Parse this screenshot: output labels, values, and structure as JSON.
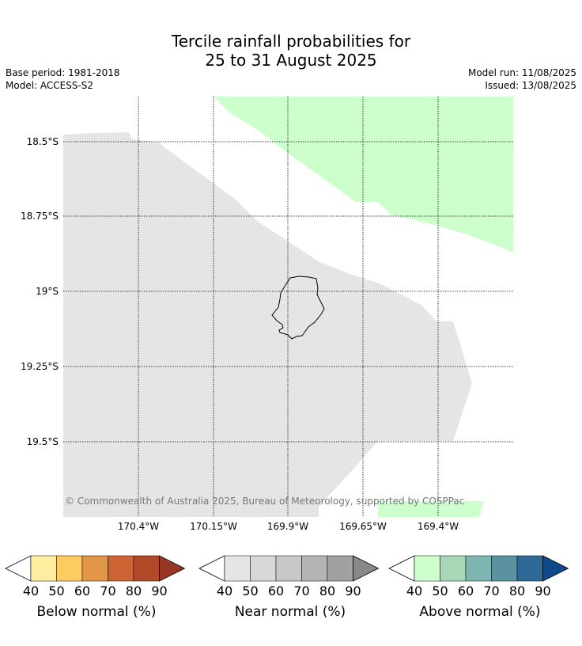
{
  "title": {
    "line1": "Tercile rainfall probabilities for",
    "line2": "25 to 31 August 2025"
  },
  "meta": {
    "base_period": "Base period: 1981-2018",
    "model": "Model: ACCESS-S2",
    "model_run": "Model run: 11/08/2025",
    "issued": "Issued: 13/08/2025"
  },
  "map": {
    "lat_labels": [
      "18.5°S",
      "18.75°S",
      "19°S",
      "19.25°S",
      "19.5°S"
    ],
    "lon_labels": [
      "170.4°W",
      "170.15°W",
      "169.9°W",
      "169.65°W",
      "169.4°W"
    ],
    "copyright": "© Commonwealth of Australia 2025, Bureau of Meteorology, supported by COSPPac",
    "colors": {
      "near_normal_shade": "#e5e5e5",
      "above_normal_shade": "#ccffcc",
      "coastline": "#000000"
    }
  },
  "legend": {
    "tick_labels": [
      "40",
      "50",
      "60",
      "70",
      "80",
      "90"
    ],
    "below": {
      "label": "Below normal (%)",
      "colors": [
        "#ffeda0",
        "#fdcc60",
        "#e19648",
        "#cd6232",
        "#b24a2a",
        "#983624"
      ]
    },
    "near": {
      "label": "Near normal (%)",
      "colors": [
        "#e5e5e5",
        "#d8d8d8",
        "#c8c8c8",
        "#b4b4b4",
        "#a0a0a0",
        "#888888"
      ]
    },
    "above": {
      "label": "Above normal (%)",
      "colors": [
        "#ccffcc",
        "#a6d8b6",
        "#7fb5b0",
        "#5b92a0",
        "#306898",
        "#0e4a8a"
      ]
    }
  }
}
